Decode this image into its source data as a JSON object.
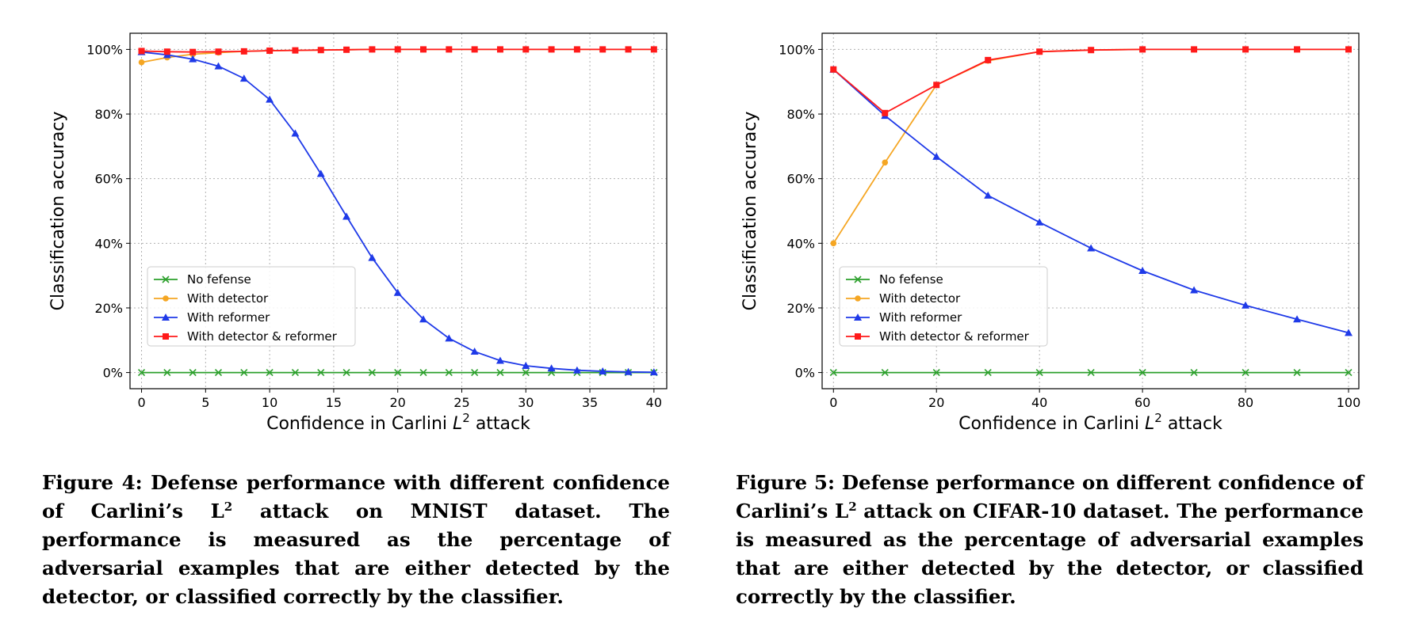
{
  "colors": {
    "no_defense": "#2ca02c",
    "with_detector": "#f5a623",
    "with_reformer": "#1f3ae8",
    "with_both": "#ff1a1a"
  },
  "chart_data": [
    {
      "type": "line",
      "xlabel": "Confidence in Carlini L",
      "xlabel_sup": "2",
      "xlabel_suffix": " attack",
      "ylabel": "Classification accuracy",
      "xlim": [
        -0.9,
        41
      ],
      "ylim": [
        -5,
        105
      ],
      "xticks": [
        0,
        5,
        10,
        15,
        20,
        25,
        30,
        35,
        40
      ],
      "yticks": [
        0,
        20,
        40,
        60,
        80,
        100
      ],
      "ytick_labels": [
        "0%",
        "20%",
        "40%",
        "60%",
        "80%",
        "100%"
      ],
      "grid": true,
      "legend_position": "center-left",
      "series": [
        {
          "name": "No fefense",
          "marker": "x",
          "color_key": "no_defense",
          "x": [
            0,
            2,
            4,
            6,
            8,
            10,
            12,
            14,
            16,
            18,
            20,
            22,
            24,
            26,
            28,
            30,
            32,
            34,
            36,
            38,
            40
          ],
          "y": [
            0,
            0,
            0,
            0,
            0,
            0,
            0,
            0,
            0,
            0,
            0,
            0,
            0,
            0,
            0,
            0,
            0,
            0,
            0,
            0,
            0
          ]
        },
        {
          "name": "With detector",
          "marker": "o",
          "color_key": "with_detector",
          "x": [
            0,
            2,
            4,
            6,
            8,
            10,
            12,
            14,
            16,
            18,
            20,
            22,
            24,
            26,
            28,
            30,
            32,
            34,
            36,
            38,
            40
          ],
          "y": [
            96,
            97.5,
            98.5,
            99,
            99.4,
            99.6,
            99.7,
            99.8,
            99.9,
            100,
            100,
            100,
            100,
            100,
            100,
            100,
            100,
            100,
            100,
            100,
            100
          ]
        },
        {
          "name": "With reformer",
          "marker": "^",
          "color_key": "with_reformer",
          "x": [
            0,
            2,
            4,
            6,
            8,
            10,
            12,
            14,
            16,
            18,
            20,
            22,
            24,
            26,
            28,
            30,
            32,
            34,
            36,
            38,
            40
          ],
          "y": [
            99.2,
            98.3,
            97,
            94.8,
            91,
            84.5,
            74,
            61.5,
            48.3,
            35.5,
            24.7,
            16.5,
            10.6,
            6.5,
            3.7,
            2.1,
            1.3,
            0.7,
            0.4,
            0.2,
            0.1
          ]
        },
        {
          "name": "With detector & reformer",
          "marker": "s",
          "color_key": "with_both",
          "x": [
            0,
            2,
            4,
            6,
            8,
            10,
            12,
            14,
            16,
            18,
            20,
            22,
            24,
            26,
            28,
            30,
            32,
            34,
            36,
            38,
            40
          ],
          "y": [
            99.5,
            99.3,
            99.2,
            99.3,
            99.4,
            99.6,
            99.7,
            99.8,
            99.9,
            100,
            100,
            100,
            100,
            100,
            100,
            100,
            100,
            100,
            100,
            100,
            100
          ]
        }
      ]
    },
    {
      "type": "line",
      "xlabel": "Confidence in Carlini L",
      "xlabel_sup": "2",
      "xlabel_suffix": " attack",
      "ylabel": "Classification accuracy",
      "xlim": [
        -2.2,
        102
      ],
      "ylim": [
        -5,
        105
      ],
      "xticks": [
        0,
        20,
        40,
        60,
        80,
        100
      ],
      "yticks": [
        0,
        20,
        40,
        60,
        80,
        100
      ],
      "ytick_labels": [
        "0%",
        "20%",
        "40%",
        "60%",
        "80%",
        "100%"
      ],
      "grid": true,
      "legend_position": "center-left",
      "series": [
        {
          "name": "No fefense",
          "marker": "x",
          "color_key": "no_defense",
          "x": [
            0,
            10,
            20,
            30,
            40,
            50,
            60,
            70,
            80,
            90,
            100
          ],
          "y": [
            0,
            0,
            0,
            0,
            0,
            0,
            0,
            0,
            0,
            0,
            0
          ]
        },
        {
          "name": "With detector",
          "marker": "o",
          "color_key": "with_detector",
          "x": [
            0,
            10,
            20,
            30,
            40,
            50,
            60,
            70,
            80,
            90,
            100
          ],
          "y": [
            40,
            65,
            89,
            96.5,
            99.3,
            99.8,
            100,
            100,
            100,
            100,
            100
          ]
        },
        {
          "name": "With reformer",
          "marker": "^",
          "color_key": "with_reformer",
          "x": [
            0,
            10,
            20,
            30,
            40,
            50,
            60,
            70,
            80,
            90,
            100
          ],
          "y": [
            93.8,
            79.5,
            66.8,
            54.8,
            46.5,
            38.5,
            31.5,
            25.5,
            20.8,
            16.5,
            12.3
          ]
        },
        {
          "name": "With detector & reformer",
          "marker": "s",
          "color_key": "with_both",
          "x": [
            0,
            10,
            20,
            30,
            40,
            50,
            60,
            70,
            80,
            90,
            100
          ],
          "y": [
            93.8,
            80.3,
            89,
            96.7,
            99.3,
            99.8,
            100,
            100,
            100,
            100,
            100
          ]
        }
      ]
    }
  ],
  "captions": [
    {
      "before_sup": "Figure 4: Defense performance with different confidence of Carlini’s L",
      "sup": "2",
      "after_sup": " attack on MNIST dataset. The performance is measured as the percentage of adversarial examples that are either detected by the detector, or classified correctly by the classifier."
    },
    {
      "before_sup": "Figure 5: Defense performance on different confidence of Carlini’s L",
      "sup": "2",
      "after_sup": " attack on CIFAR-10 dataset. The performance is measured as the percentage of adversarial examples that are either detected by the detector, or classified correctly by the classifier."
    }
  ]
}
